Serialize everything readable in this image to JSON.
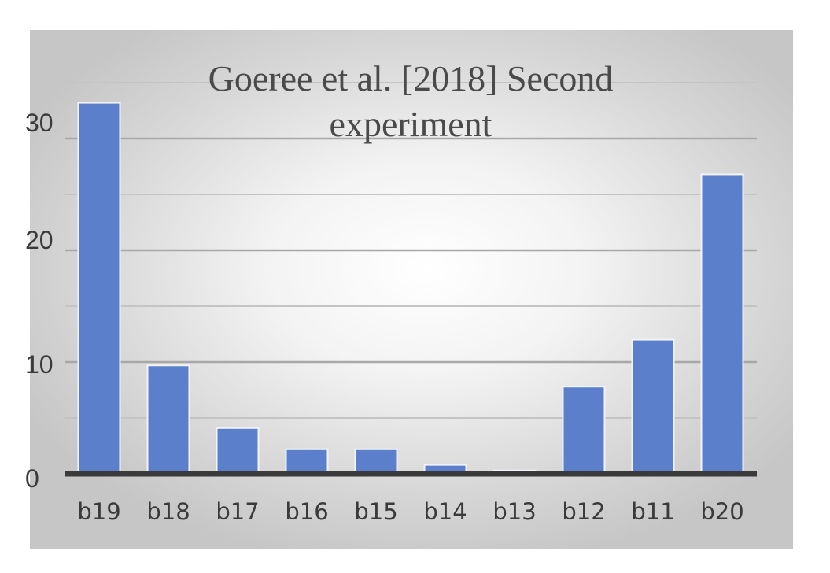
{
  "chart_data": {
    "type": "bar",
    "title_lines": [
      "Goeree et al. [2018] Second",
      "experiment"
    ],
    "categories": [
      "b19",
      "b18",
      "b17",
      "b16",
      "b15",
      "b14",
      "b13",
      "b12",
      "b11",
      "b20"
    ],
    "values": [
      33.2,
      9.7,
      4.1,
      2.2,
      2.2,
      0.8,
      0.3,
      7.8,
      12.0,
      26.8
    ],
    "yticks": [
      "0",
      "10",
      "20",
      "30"
    ],
    "ylim": [
      0,
      35
    ],
    "grid": true,
    "bar_color": "#5b7fcb",
    "bar_edge_color": "#f2f4fa",
    "axis_color": "#3a3a3a"
  }
}
